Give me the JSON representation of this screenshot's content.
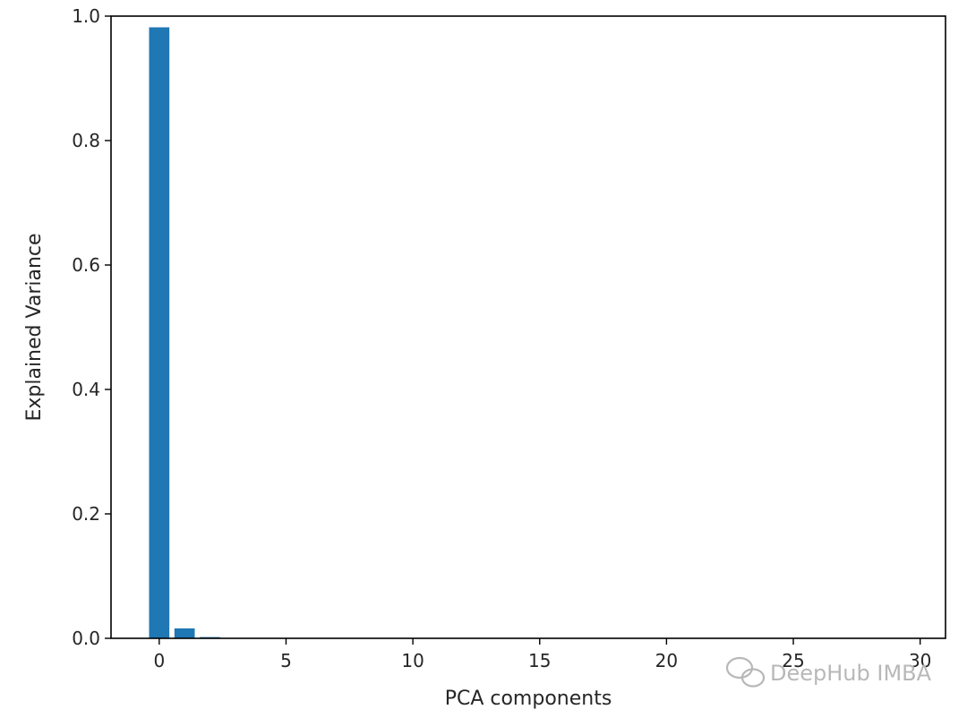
{
  "chart_data": {
    "type": "bar",
    "title": "",
    "xlabel": "PCA components",
    "ylabel": "Explained Variance",
    "x": [
      0,
      1,
      2,
      3,
      4,
      5,
      6,
      7,
      8,
      9,
      10,
      11,
      12,
      13,
      14,
      15,
      16,
      17,
      18,
      19,
      20,
      21,
      22,
      23,
      24,
      25,
      26,
      27,
      28,
      29
    ],
    "values": [
      0.982,
      0.016,
      0.002,
      0,
      0,
      0,
      0,
      0,
      0,
      0,
      0,
      0,
      0,
      0,
      0,
      0,
      0,
      0,
      0,
      0,
      0,
      0,
      0,
      0,
      0,
      0,
      0,
      0,
      0,
      0
    ],
    "xlim": [
      -1.9,
      31
    ],
    "ylim": [
      0,
      1.0
    ],
    "xticks": [
      0,
      5,
      10,
      15,
      20,
      25,
      30
    ],
    "yticks": [
      0.0,
      0.2,
      0.4,
      0.6,
      0.8,
      1.0
    ],
    "xtick_labels": [
      "0",
      "5",
      "10",
      "15",
      "20",
      "25",
      "30"
    ],
    "ytick_labels": [
      "0.0",
      "0.2",
      "0.4",
      "0.6",
      "0.8",
      "1.0"
    ],
    "bar_color": "#1f77b4",
    "grid": false,
    "legend": "none"
  },
  "watermark": {
    "icon": "wechat-icon",
    "text": "DeepHub IMBA"
  }
}
